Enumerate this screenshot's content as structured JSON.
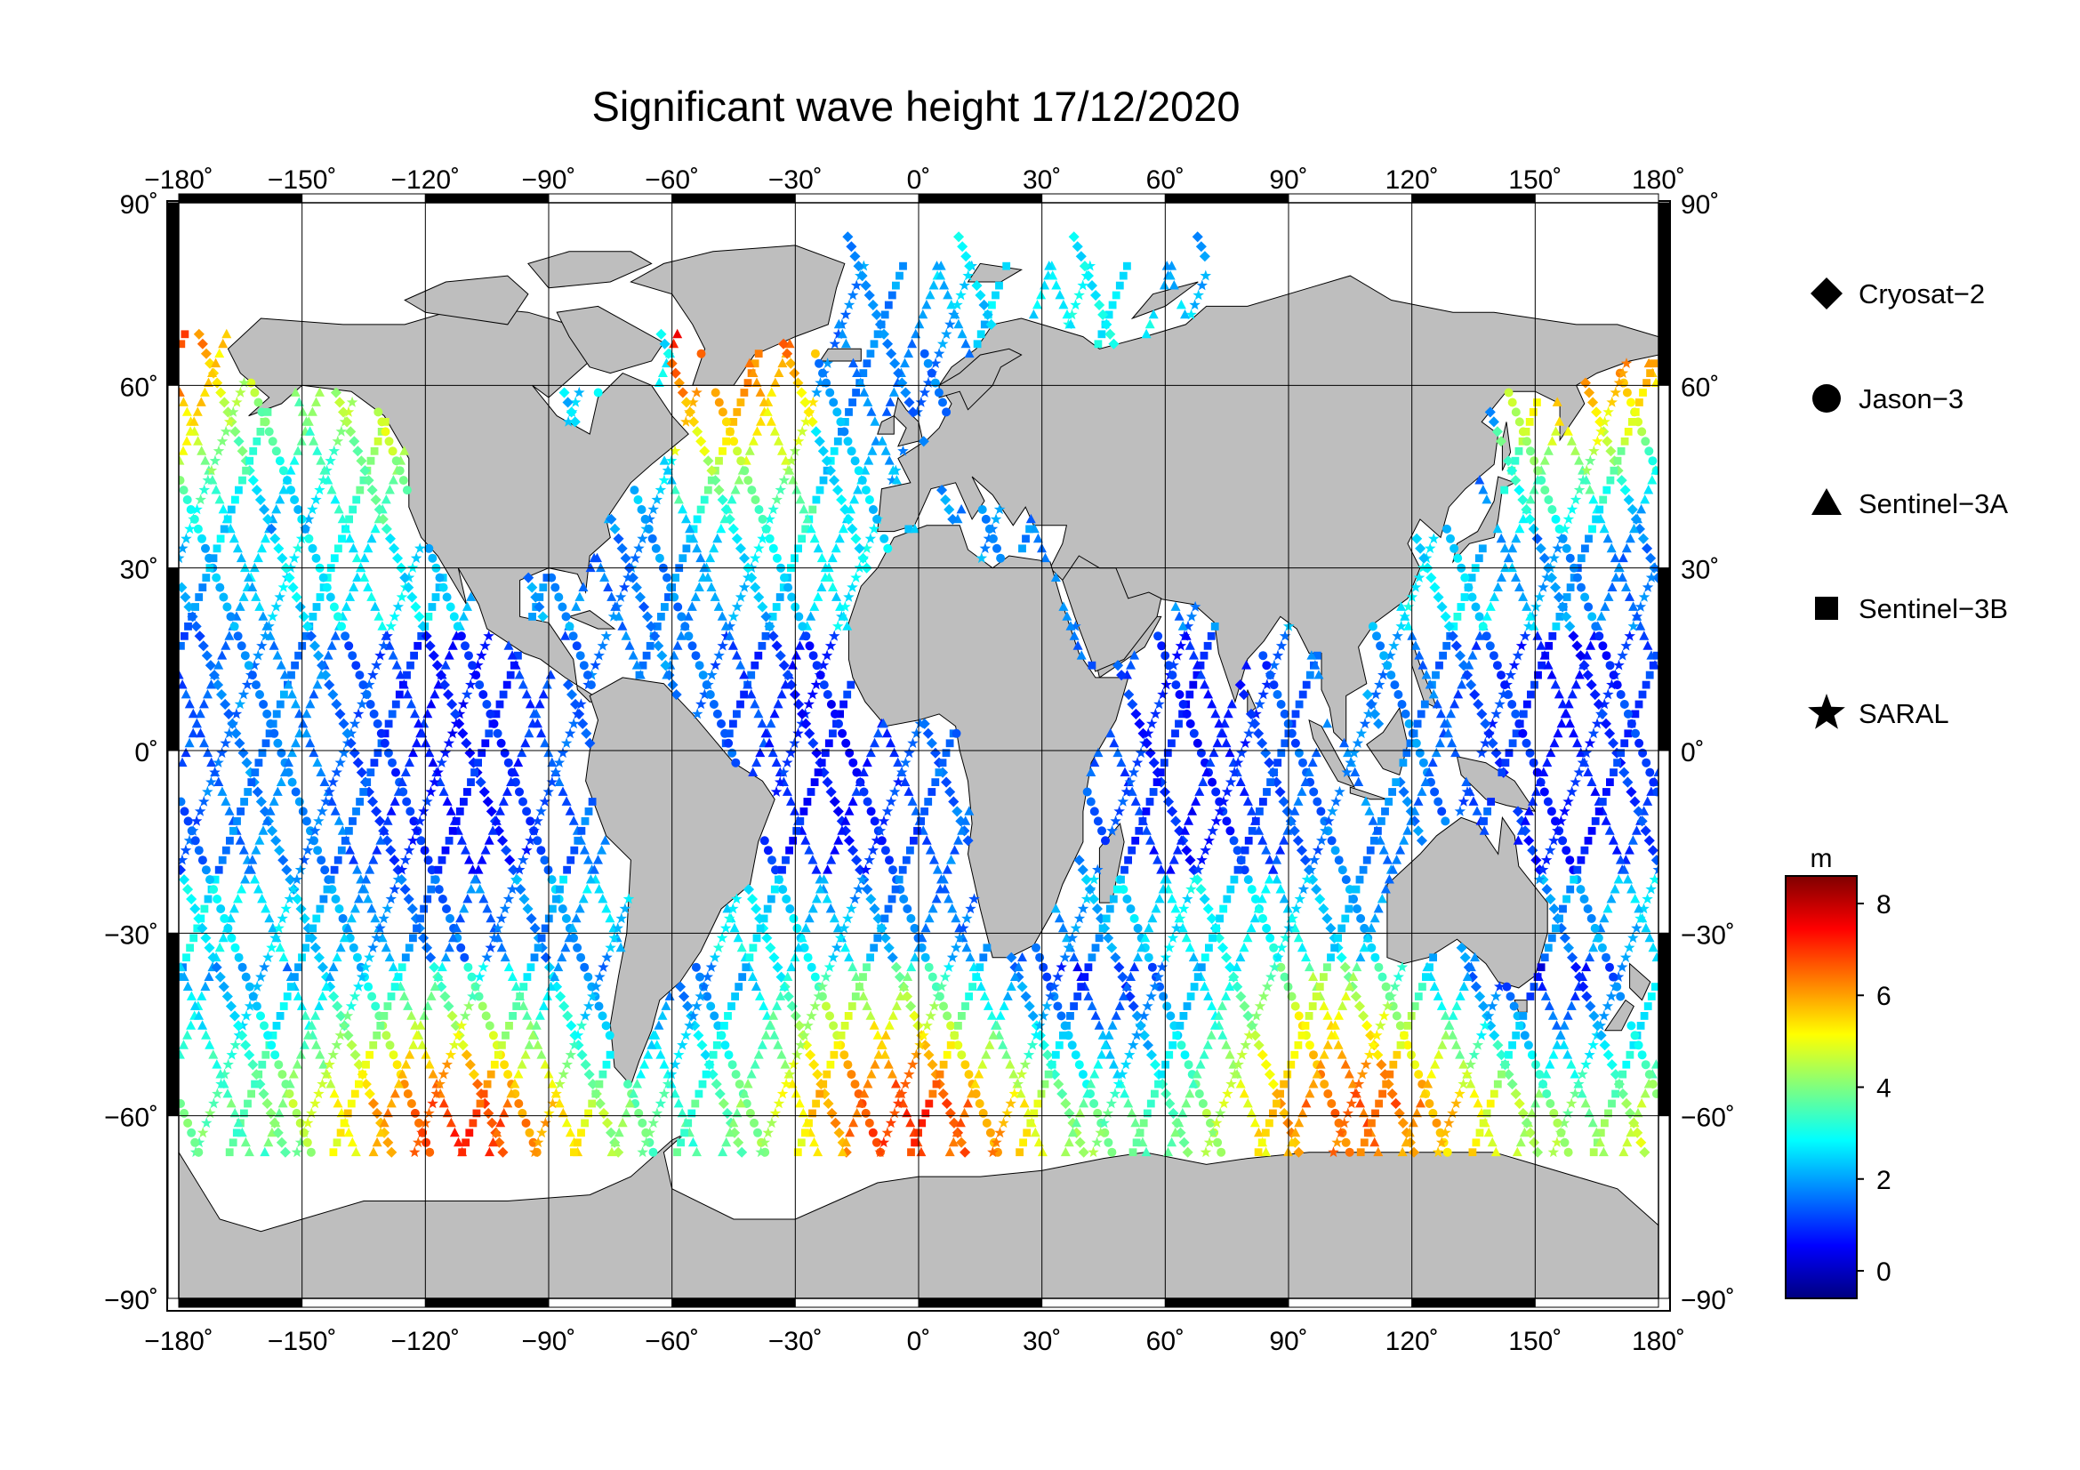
{
  "title": "Significant wave height 17/12/2020",
  "x_ticks": [
    "−180˚",
    "−150˚",
    "−120˚",
    "−90˚",
    "−60˚",
    "−30˚",
    "0˚",
    "30˚",
    "60˚",
    "90˚",
    "120˚",
    "150˚",
    "180˚"
  ],
  "y_ticks_left": [
    "90˚",
    "60˚",
    "30˚",
    "0˚",
    "−30˚",
    "−60˚",
    "−90˚"
  ],
  "y_ticks_right": [
    "90˚",
    "60˚",
    "30˚",
    "0˚",
    "−30˚",
    "−60˚",
    "−90˚"
  ],
  "legend": [
    {
      "label": "Cryosat−2",
      "marker": "diamond"
    },
    {
      "label": "Jason−3",
      "marker": "circle"
    },
    {
      "label": "Sentinel−3A",
      "marker": "triangle"
    },
    {
      "label": "Sentinel−3B",
      "marker": "square"
    },
    {
      "label": "SARAL",
      "marker": "star"
    }
  ],
  "colorbar": {
    "unit": "m",
    "ticks": [
      "8",
      "6",
      "4",
      "2",
      "0"
    ],
    "tick_values": [
      8,
      6,
      4,
      2,
      0
    ],
    "range": [
      -0.6,
      8.6
    ],
    "colors": [
      "#00007f",
      "#0000ff",
      "#007fff",
      "#00ffff",
      "#7fff7f",
      "#ffff00",
      "#ff7f00",
      "#ff0000",
      "#7f0000"
    ]
  },
  "colors": {
    "land": "#bebebe",
    "ocean": "#ffffff",
    "grid": "#000000"
  }
}
